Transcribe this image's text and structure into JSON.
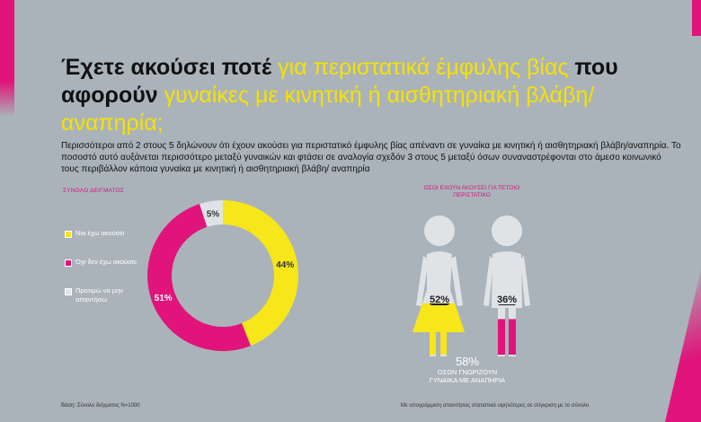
{
  "title": {
    "part1": "Έχετε ακούσει ποτέ ",
    "part2": "για περιστατικά έμφυλης βίας",
    "part3": " που αφορούν ",
    "part4": "γυναίκες με κινητική ή αισθητηριακή βλάβη/αναπηρία;"
  },
  "intro": "Περισσότεροι από 2 στους 5 δηλώνουν ότι έχουν ακούσει για περιστατικό έμφυλης βίας απέναντι σε γυναίκα με κινητική ή αισθητηριακή βλάβη/αναπηρία. Το ποσοστό αυτό αυξάνεται περισσότερο μεταξύ γυναικών και φτάσει σε αναλογία σχεδόν 3 στους 5 μεταξύ όσων συναναστρέφονται στο άμεσο κοινωνικό τους περιβάλλον κάποια γυναίκα με κινητική ή αισθητηριακή βλάβη/ αναπηρία",
  "colors": {
    "yes": "#f7e619",
    "no": "#e0147a",
    "na": "#dfe3e6",
    "figure": "#dfe3e6"
  },
  "chart_data": [
    {
      "type": "pie",
      "label": "ΣΥΝΟΛΟ ΔΕΙΓΜΑΤΟΣ",
      "slices": [
        {
          "name": "Ναι έχω ακούσει",
          "value": 44,
          "label": "44%"
        },
        {
          "name": "Όχι δεν έχω ακούσει",
          "value": 51,
          "label": "51%"
        },
        {
          "name": "Προτιμώ να μην απαντήσω",
          "value": 5,
          "label": "5%"
        }
      ]
    },
    {
      "type": "bar",
      "label": "ΟΣΟΙ ΕΧΟΥΝ ΑΚΟΥΣΕΙ ΓΙΑ ΤΕΤΟΙΟ ΠΕΡΙΣΤΑΤΙΚΟ",
      "categories": [
        "woman-figure",
        "man-figure"
      ],
      "values": [
        52,
        36
      ],
      "labels": [
        "52%",
        "36%"
      ],
      "fill_colors": [
        "#f7e619",
        "#e0147a"
      ],
      "ylim": [
        0,
        100
      ]
    }
  ],
  "know": {
    "value": "58%",
    "label_line1": "ΟΣΩΝ ΓΝΩΡΙΖΟΥΝ",
    "label_line2": "ΓΥΝΑΙΚΑ ΜΕ ΑΝΑΠΗΡΙΑ"
  },
  "base": "Βάση: Σύνολο δείγματος N=1000",
  "footnote": "Με υπογράμμιση απαντήσεις στατιστικά υψηλότερες σε σύγκριση με το σύνολο"
}
